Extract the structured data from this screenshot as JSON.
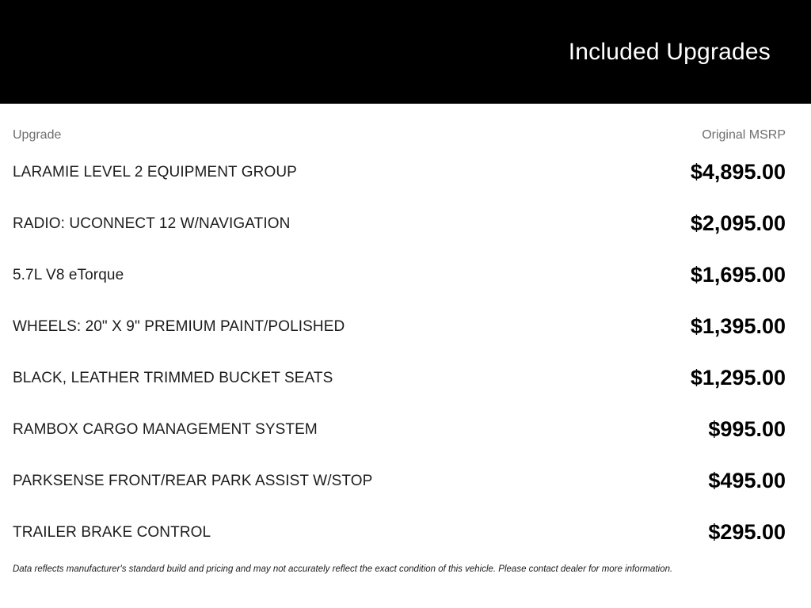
{
  "header": {
    "title": "Included Upgrades",
    "background_color": "#000000",
    "title_color": "#ffffff"
  },
  "table": {
    "columns": {
      "upgrade": "Upgrade",
      "msrp": "Original MSRP"
    },
    "rows": [
      {
        "label": "LARAMIE LEVEL 2 EQUIPMENT GROUP",
        "price": "$4,895.00"
      },
      {
        "label": "RADIO: UCONNECT 12 W/NAVIGATION",
        "price": "$2,095.00"
      },
      {
        "label": "5.7L V8 eTorque",
        "price": "$1,695.00"
      },
      {
        "label": "WHEELS: 20\" X 9\" PREMIUM PAINT/POLISHED",
        "price": "$1,395.00"
      },
      {
        "label": "BLACK, LEATHER TRIMMED BUCKET SEATS",
        "price": "$1,295.00"
      },
      {
        "label": "RAMBOX CARGO MANAGEMENT SYSTEM",
        "price": "$995.00"
      },
      {
        "label": "PARKSENSE FRONT/REAR PARK ASSIST W/STOP",
        "price": "$495.00"
      },
      {
        "label": "TRAILER BRAKE CONTROL",
        "price": "$295.00"
      }
    ]
  },
  "footer": {
    "disclaimer": "Data reflects manufacturer's standard build and pricing and may not accurately reflect the exact condition of this vehicle. Please contact dealer for more information."
  }
}
